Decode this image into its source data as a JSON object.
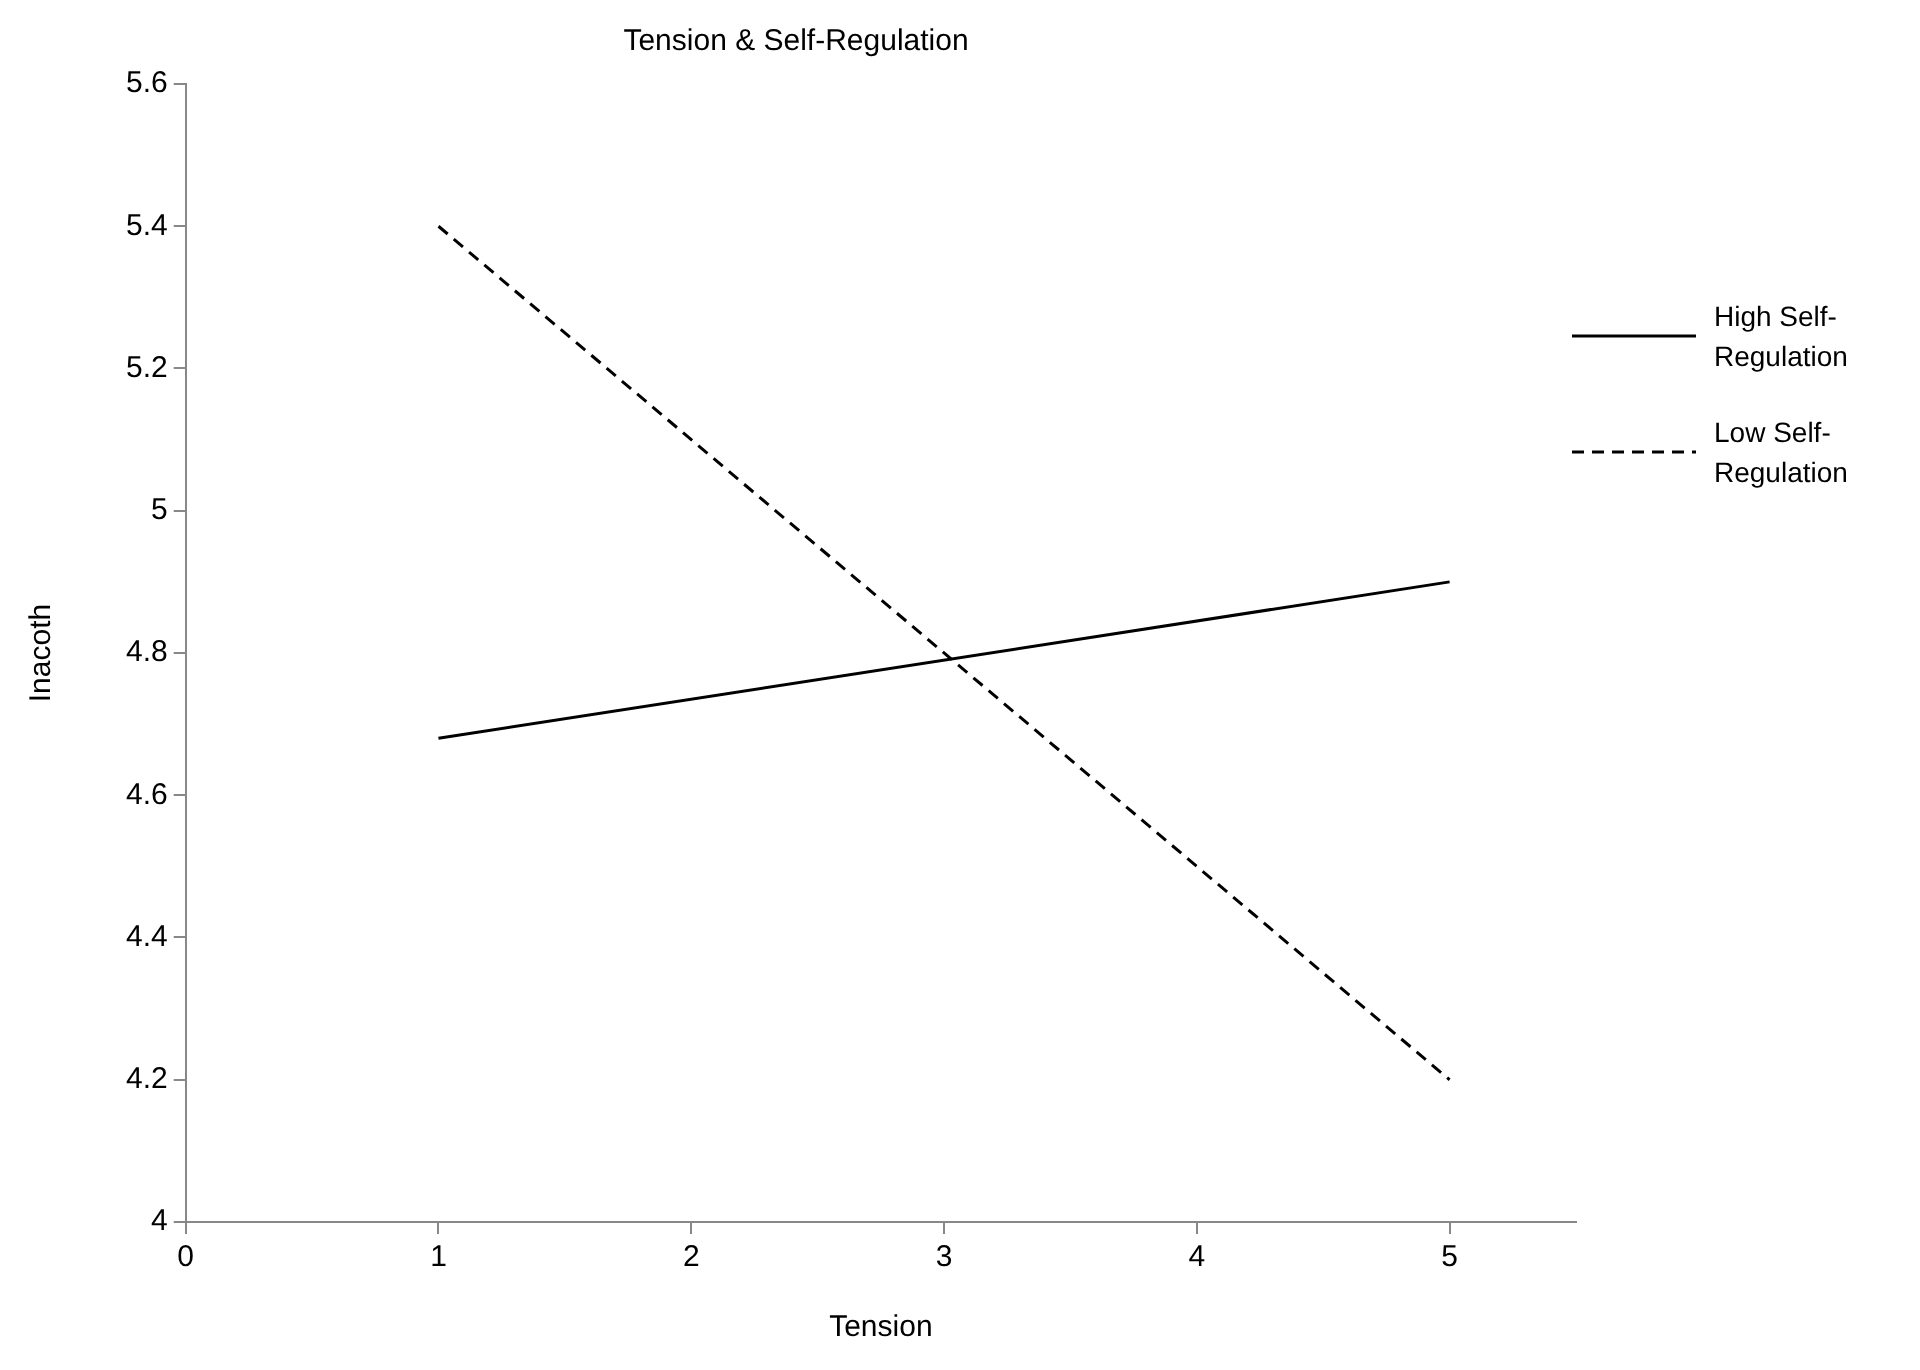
{
  "chart_data": {
    "type": "line",
    "title": "Tension & Self-Regulation",
    "xlabel": "Tension",
    "ylabel": "Inacoth",
    "x": [
      1,
      5
    ],
    "series": [
      {
        "name": "High Self-Regulation",
        "color": "#000000",
        "values": [
          4.68,
          4.9
        ],
        "line_style": "solid"
      },
      {
        "name": "Low Self-Regulation",
        "color": "#000000",
        "values": [
          5.4,
          4.2
        ],
        "line_style": "dashed"
      }
    ],
    "xlim": [
      0,
      5.5
    ],
    "xticks": [
      0,
      1,
      2,
      3,
      4,
      5
    ],
    "ylim": [
      4,
      5.6
    ],
    "yticks": [
      4,
      4.2,
      4.4,
      4.6,
      4.8,
      5,
      5.2,
      5.4,
      5.6
    ],
    "grid": false,
    "legend": "right",
    "marker": "none"
  }
}
